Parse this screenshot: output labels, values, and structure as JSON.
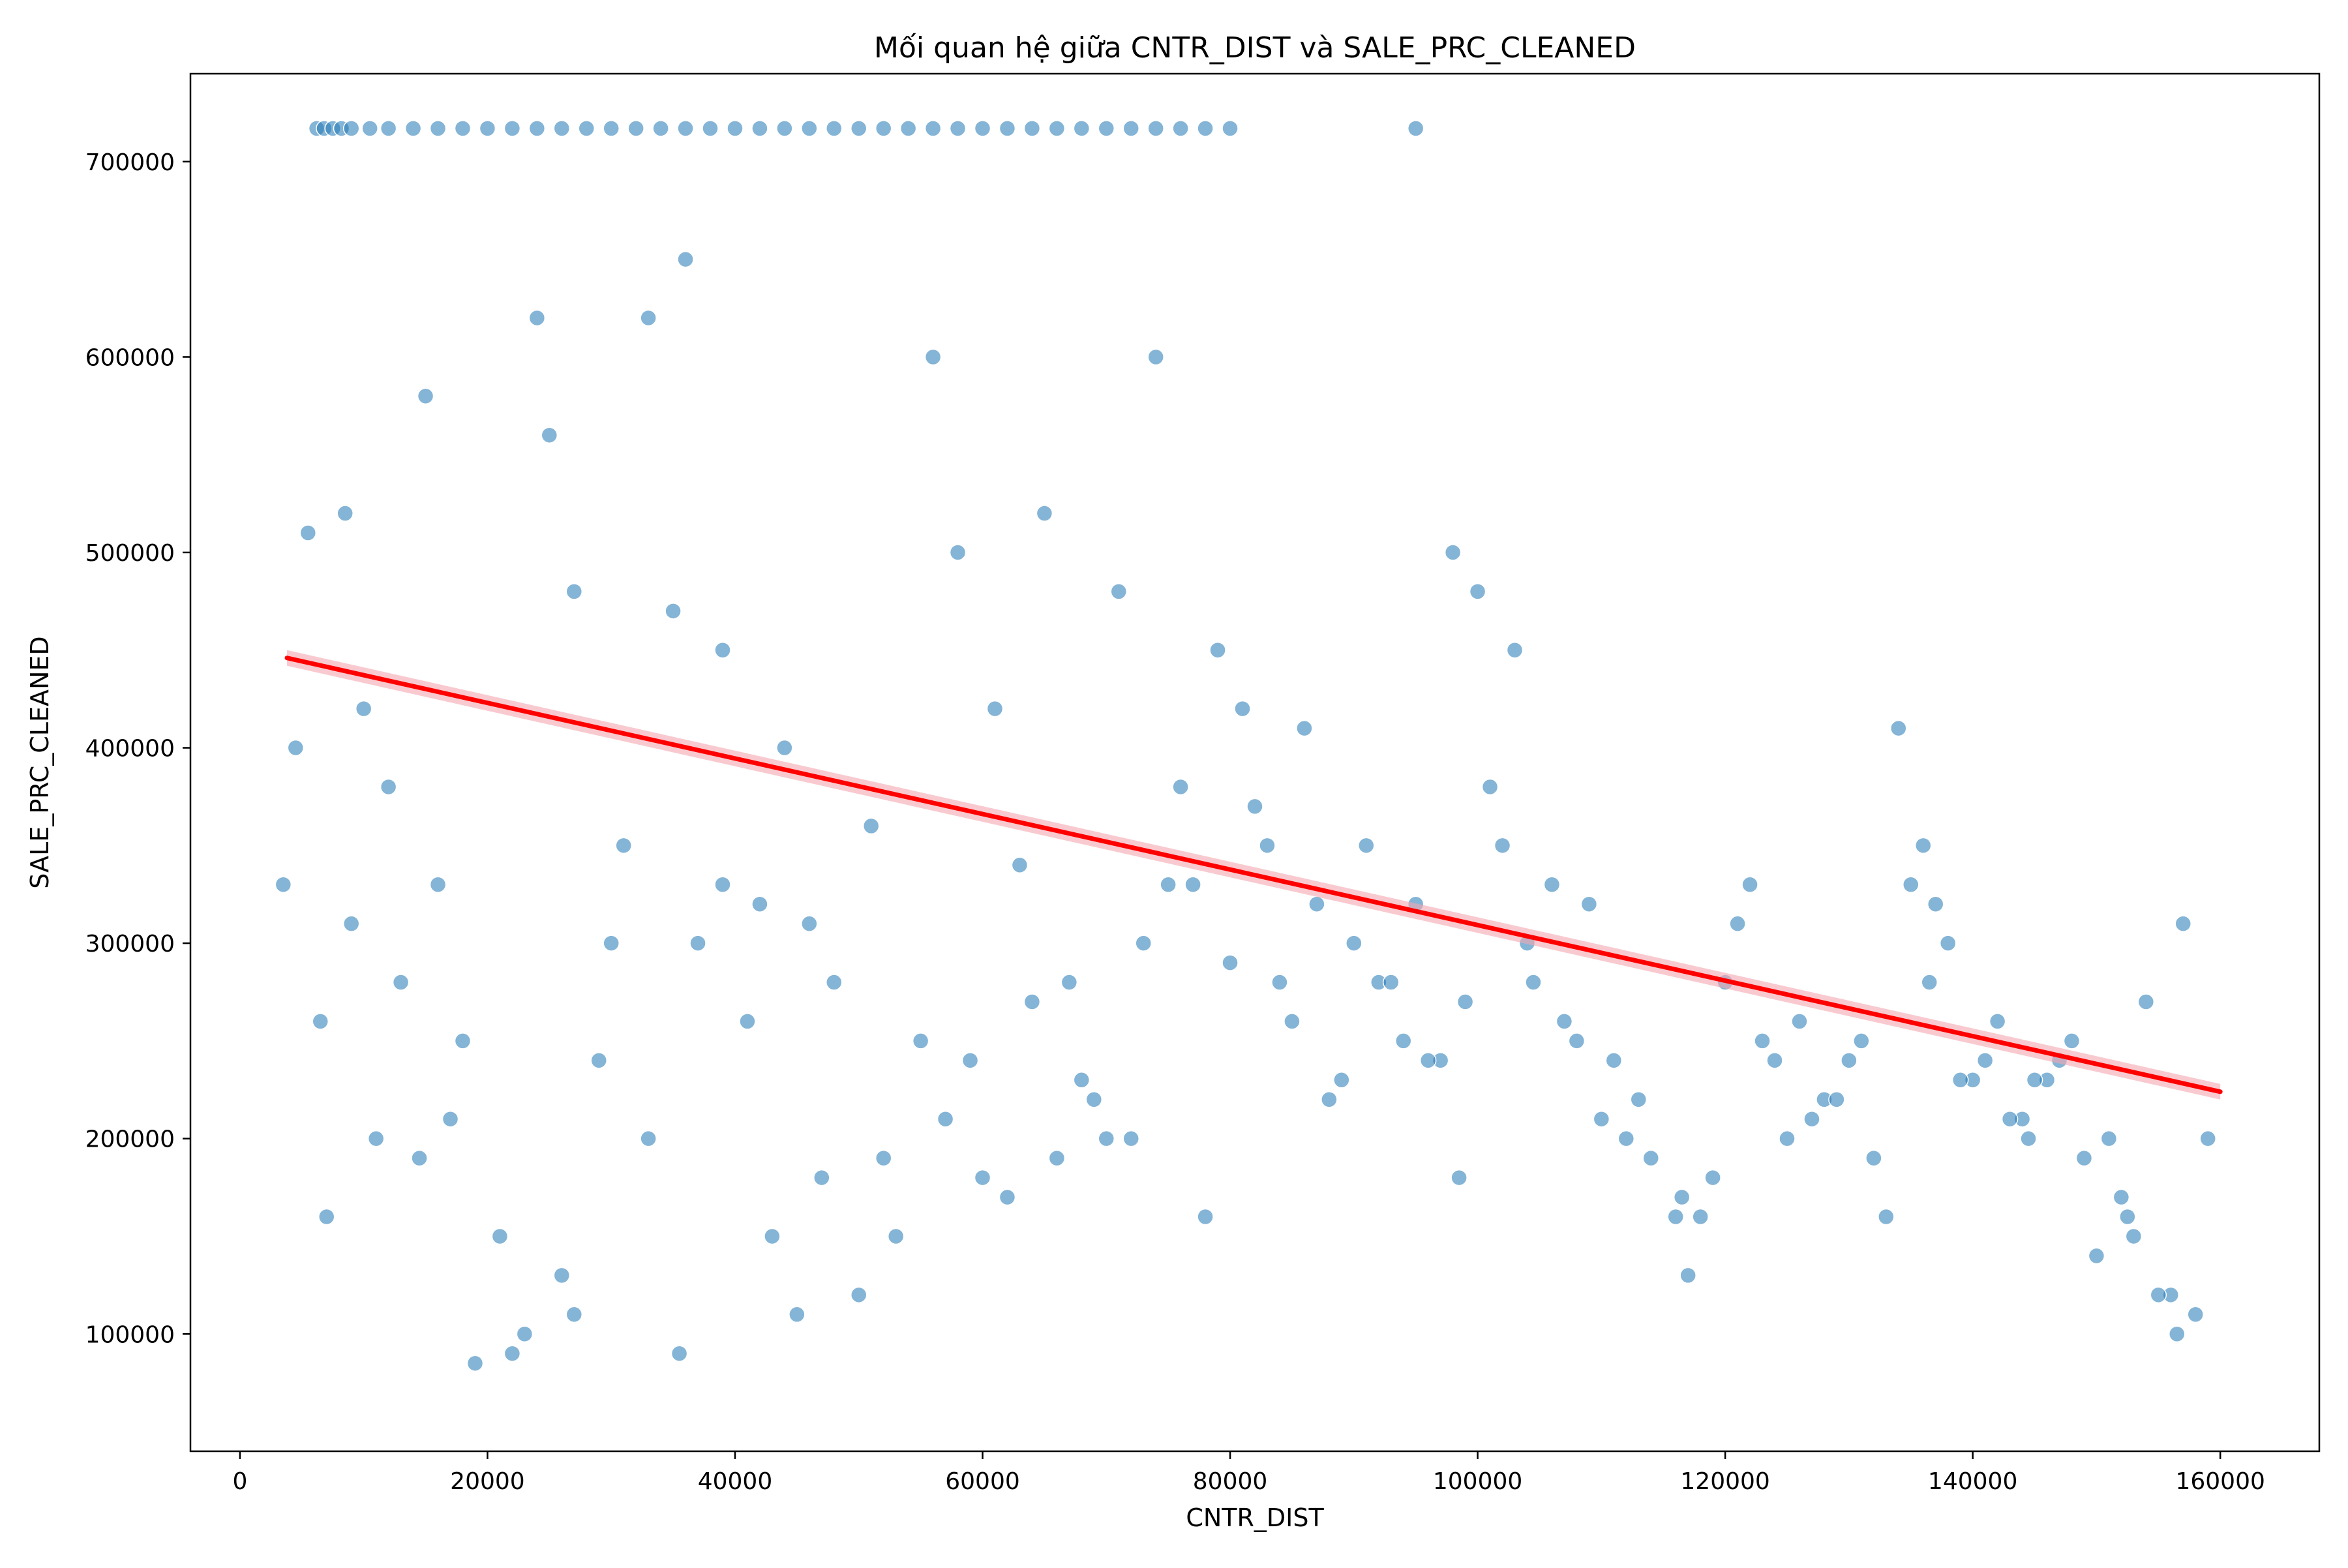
{
  "chart_data": {
    "type": "scatter",
    "title": "Mối quan hệ giữa CNTR_DIST và SALE_PRC_CLEANED",
    "xlabel": "CNTR_DIST",
    "ylabel": "SALE_PRC_CLEANED",
    "xlim": [
      -4000,
      168000
    ],
    "ylim": [
      40000,
      745000
    ],
    "xticks": [
      0,
      20000,
      40000,
      60000,
      80000,
      100000,
      120000,
      140000,
      160000
    ],
    "yticks": [
      100000,
      200000,
      300000,
      400000,
      500000,
      600000,
      700000
    ],
    "grid": false,
    "legend": "none",
    "colors": {
      "points": "#1f77b4",
      "trend": "#ff0000",
      "confidence_band": "#f4a6b0"
    },
    "series": [
      {
        "kind": "points",
        "x": [
          3500,
          4500,
          5500,
          6200,
          6800,
          7500,
          8200,
          9000,
          10500,
          12000,
          14000,
          16000,
          18000,
          20000,
          22000,
          24000,
          26000,
          28000,
          30000,
          32000,
          34000,
          36000,
          38000,
          40000,
          42000,
          44000,
          46000,
          48000,
          50000,
          52000,
          54000,
          56000,
          58000,
          60000,
          62000,
          64000,
          66000,
          68000,
          70000,
          72000,
          74000,
          76000,
          78000,
          80000,
          95000,
          7000,
          8500,
          10000,
          12000,
          15000,
          18000,
          21000,
          24000,
          27000,
          30000,
          33000,
          36000,
          39000,
          42000,
          45000,
          48000,
          52000,
          56000,
          59000,
          62000,
          65000,
          68000,
          71000,
          74000,
          77000,
          80000,
          83000,
          86000,
          89000,
          92000,
          95000,
          98000,
          101000,
          104000,
          108000,
          112000,
          116000,
          120000,
          124000,
          128000,
          132000,
          136000,
          140000,
          144000,
          148000,
          152000,
          156000,
          159000,
          9000,
          13000,
          17000,
          22000,
          26000,
          31000,
          35000,
          41000,
          47000,
          53000,
          58000,
          63000,
          67000,
          72000,
          76000,
          81000,
          85000,
          90000,
          94000,
          99000,
          103000,
          109000,
          114000,
          118000,
          122000,
          126000,
          130000,
          134000,
          138000,
          142000,
          146000,
          150000,
          154000,
          157000,
          11000,
          16000,
          23000,
          29000,
          37000,
          44000,
          51000,
          57000,
          64000,
          69000,
          75000,
          82000,
          87000,
          93000,
          97000,
          102000,
          107000,
          113000,
          117000,
          121000,
          127000,
          131000,
          135000,
          139000,
          143000,
          147000,
          151000,
          155000,
          158000,
          6500,
          14500,
          25000,
          33000,
          39000,
          46000,
          55000,
          61000,
          66000,
          73000,
          79000,
          84000,
          91000,
          96000,
          100000,
          106000,
          111000,
          119000,
          125000,
          129000,
          133000,
          137000,
          141000,
          145000,
          149000,
          153000,
          156500,
          19000,
          27000,
          35500,
          43000,
          50000,
          60000,
          70000,
          78000,
          88000,
          98500,
          104500,
          110000,
          116500,
          123000,
          136500,
          144500,
          152500
        ],
        "y": [
          330000,
          400000,
          510000,
          717000,
          717000,
          717000,
          717000,
          717000,
          717000,
          717000,
          717000,
          717000,
          717000,
          717000,
          717000,
          717000,
          717000,
          717000,
          717000,
          717000,
          717000,
          717000,
          717000,
          717000,
          717000,
          717000,
          717000,
          717000,
          717000,
          717000,
          717000,
          717000,
          717000,
          717000,
          717000,
          717000,
          717000,
          717000,
          717000,
          717000,
          717000,
          717000,
          717000,
          717000,
          717000,
          160000,
          520000,
          420000,
          380000,
          580000,
          250000,
          150000,
          620000,
          480000,
          300000,
          200000,
          650000,
          450000,
          320000,
          110000,
          280000,
          190000,
          600000,
          240000,
          170000,
          520000,
          230000,
          480000,
          600000,
          330000,
          290000,
          350000,
          410000,
          230000,
          280000,
          320000,
          500000,
          380000,
          300000,
          250000,
          200000,
          160000,
          280000,
          240000,
          220000,
          190000,
          350000,
          230000,
          210000,
          250000,
          170000,
          120000,
          200000,
          310000,
          280000,
          210000,
          90000,
          130000,
          350000,
          470000,
          260000,
          180000,
          150000,
          500000,
          340000,
          280000,
          200000,
          380000,
          420000,
          260000,
          300000,
          250000,
          270000,
          450000,
          320000,
          190000,
          160000,
          330000,
          260000,
          240000,
          410000,
          300000,
          260000,
          230000,
          140000,
          270000,
          310000,
          200000,
          330000,
          100000,
          240000,
          300000,
          400000,
          360000,
          210000,
          270000,
          220000,
          330000,
          370000,
          320000,
          280000,
          240000,
          350000,
          260000,
          220000,
          130000,
          310000,
          210000,
          250000,
          330000,
          230000,
          210000,
          240000,
          200000,
          120000,
          110000,
          260000,
          190000,
          560000,
          620000,
          330000,
          310000,
          250000,
          420000,
          190000,
          300000,
          450000,
          280000,
          350000,
          240000,
          480000,
          330000,
          240000,
          180000,
          200000,
          220000,
          160000,
          320000,
          240000,
          230000,
          190000,
          150000,
          100000,
          85000,
          110000,
          90000,
          150000,
          120000,
          180000,
          200000,
          160000,
          220000,
          180000,
          280000,
          210000,
          170000,
          250000,
          280000,
          200000,
          160000
        ]
      },
      {
        "kind": "trend",
        "x": [
          3800,
          160000
        ],
        "y": [
          446000,
          224000
        ]
      }
    ]
  }
}
